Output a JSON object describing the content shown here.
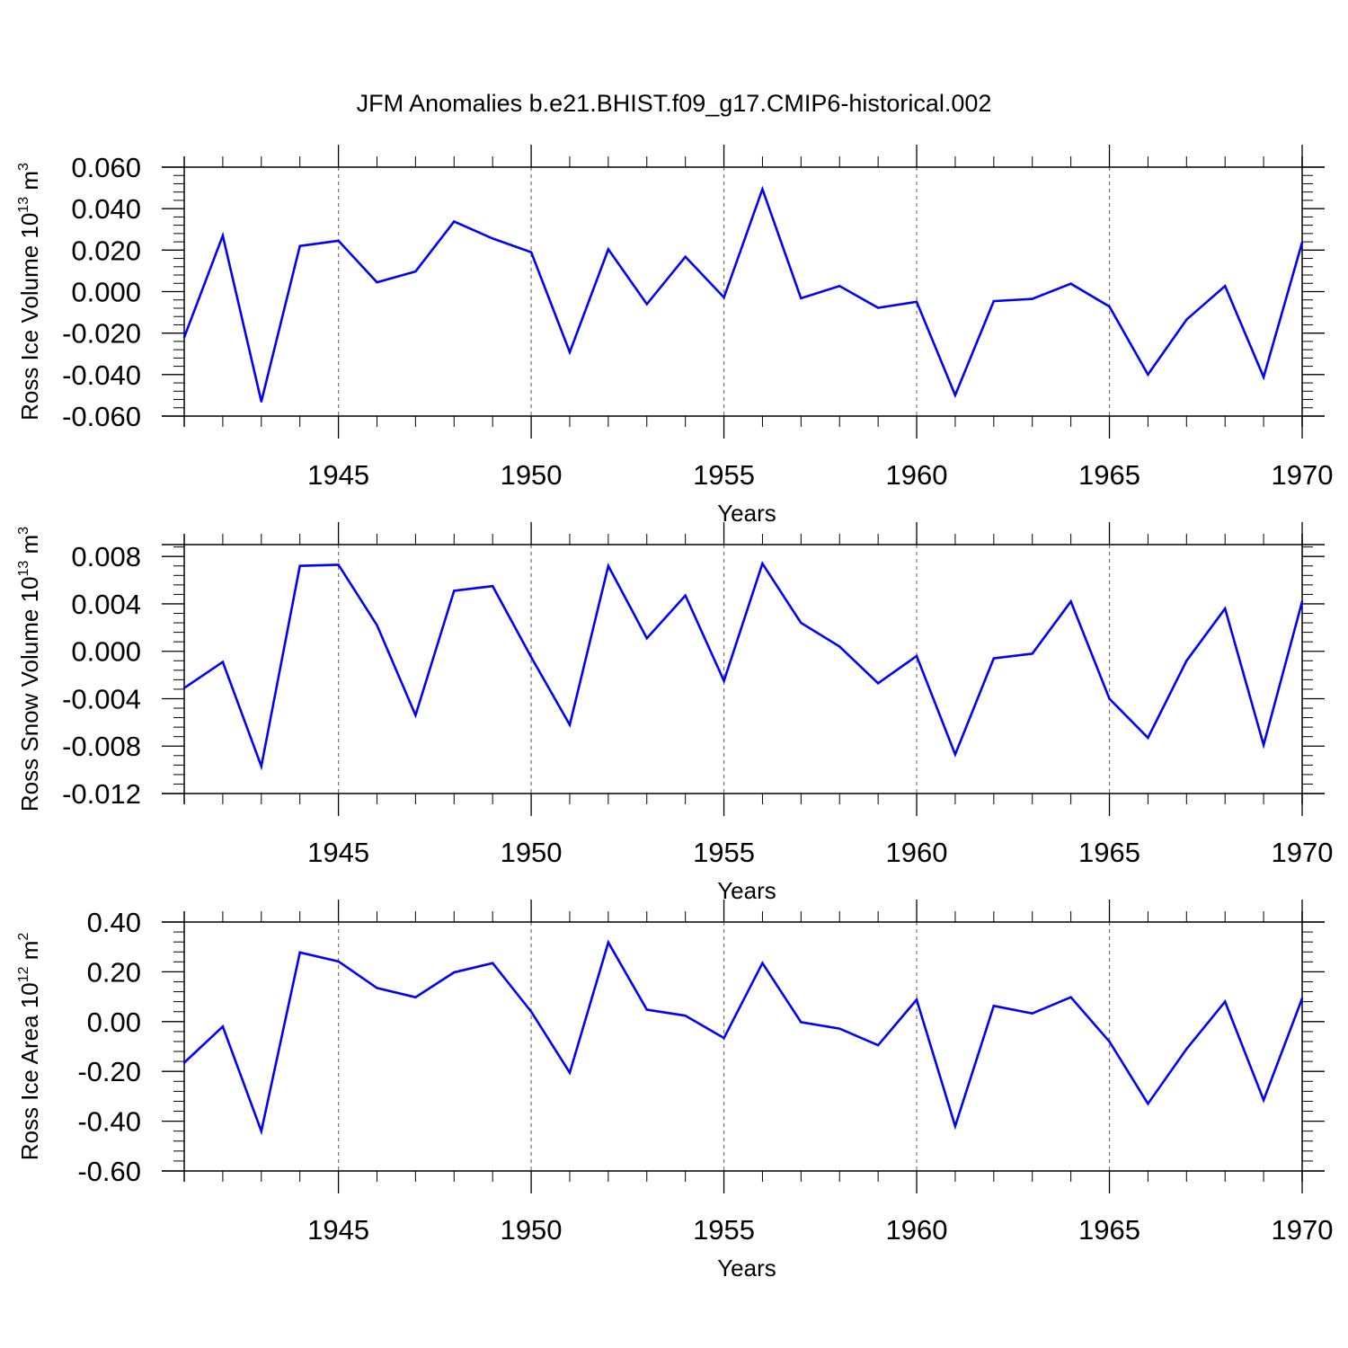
{
  "title": "JFM Anomalies b.e21.BHIST.f09_g17.CMIP6-historical.002",
  "line_color": "#0000ff",
  "chart_data": [
    {
      "type": "line",
      "id": "ice-volume",
      "ylabel": "Ross Ice Volume",
      "yunit_base": "10",
      "yunit_exp": "13",
      "yunit_suffix": "m",
      "yunit_suffix_exp": "3",
      "xlabel": "Years",
      "xlim": [
        1941,
        1970
      ],
      "ylim": [
        -0.06,
        0.06
      ],
      "yticks": [
        -0.06,
        -0.04,
        -0.02,
        0.0,
        0.02,
        0.04,
        0.06
      ],
      "ytick_labels": [
        "-0.060",
        "-0.040",
        "-0.020",
        "0.000",
        "0.020",
        "0.040",
        "0.060"
      ],
      "xticks": [
        1945,
        1950,
        1955,
        1960,
        1965,
        1970
      ],
      "xtick_labels": [
        "1945",
        "1950",
        "1955",
        "1960",
        "1965",
        "1970"
      ],
      "x": [
        1941,
        1942,
        1943,
        1944,
        1945,
        1946,
        1947,
        1948,
        1949,
        1950,
        1951,
        1952,
        1953,
        1954,
        1955,
        1956,
        1957,
        1958,
        1959,
        1960,
        1961,
        1962,
        1963,
        1964,
        1965,
        1966,
        1967,
        1968,
        1969,
        1970
      ],
      "values": [
        -0.022,
        0.027,
        -0.053,
        0.022,
        0.0245,
        0.0045,
        0.0097,
        0.0338,
        0.0256,
        0.019,
        -0.0292,
        0.0204,
        -0.006,
        0.0168,
        -0.0028,
        0.0494,
        -0.0032,
        0.0027,
        -0.0078,
        -0.0049,
        -0.0499,
        -0.0046,
        -0.0035,
        0.0038,
        -0.0072,
        -0.04,
        -0.0135,
        0.0027,
        -0.0412,
        0.0238
      ]
    },
    {
      "type": "line",
      "id": "snow-volume",
      "ylabel": "Ross Snow Volume",
      "yunit_base": "10",
      "yunit_exp": "13",
      "yunit_suffix": "m",
      "yunit_suffix_exp": "3",
      "xlabel": "Years",
      "xlim": [
        1941,
        1970
      ],
      "ylim": [
        -0.012,
        0.009
      ],
      "yticks": [
        -0.012,
        -0.008,
        -0.004,
        0.0,
        0.004,
        0.008
      ],
      "ytick_labels": [
        "-0.012",
        "-0.008",
        "-0.004",
        "0.000",
        "0.004",
        "0.008"
      ],
      "xticks": [
        1945,
        1950,
        1955,
        1960,
        1965,
        1970
      ],
      "xtick_labels": [
        "1945",
        "1950",
        "1955",
        "1960",
        "1965",
        "1970"
      ],
      "x": [
        1941,
        1942,
        1943,
        1944,
        1945,
        1946,
        1947,
        1948,
        1949,
        1950,
        1951,
        1952,
        1953,
        1954,
        1955,
        1956,
        1957,
        1958,
        1959,
        1960,
        1961,
        1962,
        1963,
        1964,
        1965,
        1966,
        1967,
        1968,
        1969,
        1970
      ],
      "values": [
        -0.0031,
        -0.0009,
        -0.0097,
        0.0072,
        0.0073,
        0.0022,
        -0.0054,
        0.0051,
        0.0055,
        -0.0005,
        -0.0062,
        0.0072,
        0.0011,
        0.0047,
        -0.0025,
        0.0074,
        0.0024,
        0.0004,
        -0.0027,
        -0.0004,
        -0.0087,
        -0.0006,
        -0.0002,
        0.0042,
        -0.004,
        -0.0073,
        -0.0008,
        0.0036,
        -0.0079,
        0.0042
      ]
    },
    {
      "type": "line",
      "id": "ice-area",
      "ylabel": "Ross Ice Area",
      "yunit_base": "10",
      "yunit_exp": "12",
      "yunit_suffix": "m",
      "yunit_suffix_exp": "2",
      "xlabel": "Years",
      "xlim": [
        1941,
        1970
      ],
      "ylim": [
        -0.6,
        0.4
      ],
      "yticks": [
        -0.6,
        -0.4,
        -0.2,
        0.0,
        0.2,
        0.4
      ],
      "ytick_labels": [
        "-0.60",
        "-0.40",
        "-0.20",
        "0.00",
        "0.20",
        "0.40"
      ],
      "xticks": [
        1945,
        1950,
        1955,
        1960,
        1965,
        1970
      ],
      "xtick_labels": [
        "1945",
        "1950",
        "1955",
        "1960",
        "1965",
        "1970"
      ],
      "x": [
        1941,
        1942,
        1943,
        1944,
        1945,
        1946,
        1947,
        1948,
        1949,
        1950,
        1951,
        1952,
        1953,
        1954,
        1955,
        1956,
        1957,
        1958,
        1959,
        1960,
        1961,
        1962,
        1963,
        1964,
        1965,
        1966,
        1967,
        1968,
        1969,
        1970
      ],
      "values": [
        -0.165,
        -0.02,
        -0.44,
        0.278,
        0.242,
        0.135,
        0.098,
        0.198,
        0.235,
        0.04,
        -0.205,
        0.318,
        0.048,
        0.024,
        -0.066,
        0.235,
        -0.002,
        -0.028,
        -0.095,
        0.088,
        -0.42,
        0.063,
        0.033,
        0.098,
        -0.08,
        -0.33,
        -0.11,
        0.08,
        -0.315,
        0.093
      ]
    }
  ]
}
